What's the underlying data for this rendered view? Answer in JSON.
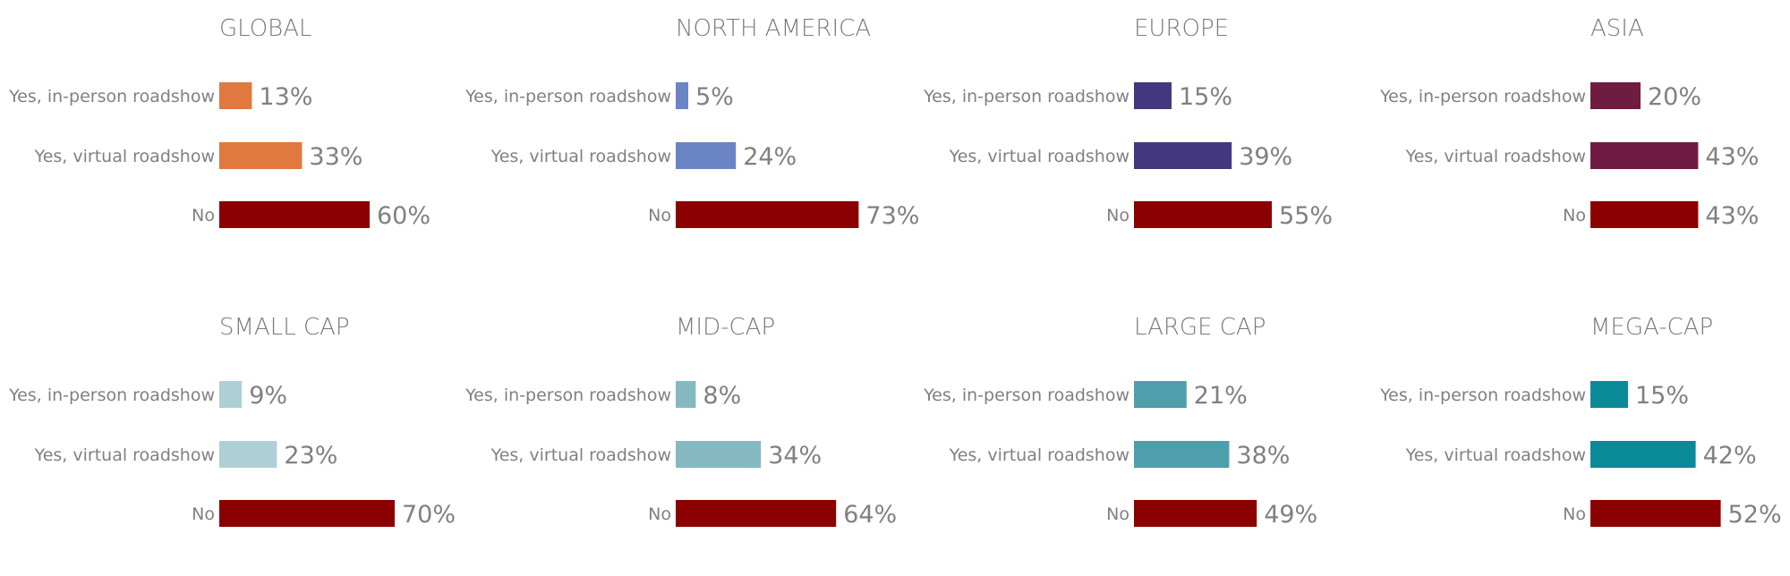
{
  "chart_data": [
    {
      "type": "bar",
      "orientation": "horizontal",
      "title": "GLOBAL",
      "categories": [
        "Yes, in-person roadshow",
        "Yes, virtual roadshow",
        "No"
      ],
      "values": [
        13,
        33,
        60
      ],
      "value_labels": [
        "13%",
        "33%",
        "60%"
      ],
      "colors": [
        "#E07840",
        "#E07840",
        "#8B0000"
      ]
    },
    {
      "type": "bar",
      "orientation": "horizontal",
      "title": "NORTH AMERICA",
      "categories": [
        "Yes, in-person roadshow",
        "Yes, virtual roadshow",
        "No"
      ],
      "values": [
        5,
        24,
        73
      ],
      "value_labels": [
        "5%",
        "24%",
        "73%"
      ],
      "colors": [
        "#6A84C4",
        "#6A84C4",
        "#8B0000"
      ]
    },
    {
      "type": "bar",
      "orientation": "horizontal",
      "title": "EUROPE",
      "categories": [
        "Yes, in-person roadshow",
        "Yes, virtual roadshow",
        "No"
      ],
      "values": [
        15,
        39,
        55
      ],
      "value_labels": [
        "15%",
        "39%",
        "55%"
      ],
      "colors": [
        "#433880",
        "#433880",
        "#8B0000"
      ]
    },
    {
      "type": "bar",
      "orientation": "horizontal",
      "title": "ASIA",
      "categories": [
        "Yes, in-person roadshow",
        "Yes, virtual roadshow",
        "No"
      ],
      "values": [
        20,
        43,
        43
      ],
      "value_labels": [
        "20%",
        "43%",
        "43%"
      ],
      "colors": [
        "#701C42",
        "#701C42",
        "#8B0000"
      ]
    },
    {
      "type": "bar",
      "orientation": "horizontal",
      "title": "SMALL CAP",
      "categories": [
        "Yes, in-person roadshow",
        "Yes, virtual roadshow",
        "No"
      ],
      "values": [
        9,
        23,
        70
      ],
      "value_labels": [
        "9%",
        "23%",
        "70%"
      ],
      "colors": [
        "#AECFD6",
        "#AECFD6",
        "#8B0000"
      ]
    },
    {
      "type": "bar",
      "orientation": "horizontal",
      "title": "MID-CAP",
      "categories": [
        "Yes, in-person roadshow",
        "Yes, virtual roadshow",
        "No"
      ],
      "values": [
        8,
        34,
        64
      ],
      "value_labels": [
        "8%",
        "34%",
        "64%"
      ],
      "colors": [
        "#84B9C1",
        "#84B9C1",
        "#8B0000"
      ]
    },
    {
      "type": "bar",
      "orientation": "horizontal",
      "title": "LARGE CAP",
      "categories": [
        "Yes, in-person roadshow",
        "Yes, virtual roadshow",
        "No"
      ],
      "values": [
        21,
        38,
        49
      ],
      "value_labels": [
        "21%",
        "38%",
        "49%"
      ],
      "colors": [
        "#4C9FAB",
        "#4C9FAB",
        "#8B0000"
      ]
    },
    {
      "type": "bar",
      "orientation": "horizontal",
      "title": "MEGA-CAP",
      "categories": [
        "Yes, in-person roadshow",
        "Yes, virtual roadshow",
        "No"
      ],
      "values": [
        15,
        42,
        52
      ],
      "value_labels": [
        "15%",
        "42%",
        "52%"
      ],
      "colors": [
        "#0A8A96",
        "#0A8A96",
        "#8B0000"
      ]
    }
  ]
}
